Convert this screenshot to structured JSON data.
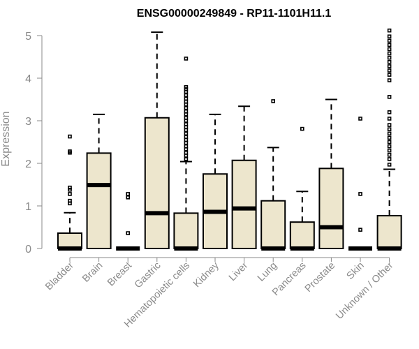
{
  "chart_data": {
    "type": "boxplot",
    "title": "ENSG00000249849 - RP11-1101H11.1",
    "ylabel": "Expression",
    "xlabel": "",
    "ylim": [
      0,
      5.2
    ],
    "yticks": [
      0,
      1,
      2,
      3,
      4,
      5
    ],
    "grid": false,
    "box_fill": "#ede6cd",
    "categories": [
      "Bladder",
      "Brain",
      "Breast",
      "Gastric",
      "Hematopoietic cells",
      "Kidney",
      "Liver",
      "Lung",
      "Pancreas",
      "Prostate",
      "Skin",
      "Unknown / Other"
    ],
    "boxes": [
      {
        "min": 0,
        "q1": 0,
        "median": 0,
        "q3": 0.36,
        "max": 0.84,
        "outliers": [
          1.06,
          1.12,
          1.28,
          1.38,
          1.43,
          2.25,
          2.28,
          2.63
        ]
      },
      {
        "min": 0,
        "q1": 0,
        "median": 1.49,
        "q3": 2.24,
        "max": 3.15,
        "outliers": []
      },
      {
        "min": 0,
        "q1": 0,
        "median": 0,
        "q3": 0,
        "max": 0,
        "outliers": [
          0.36,
          1.2,
          1.28
        ]
      },
      {
        "min": 0,
        "q1": 0,
        "median": 0.83,
        "q3": 3.07,
        "max": 5.08,
        "outliers": []
      },
      {
        "min": 0,
        "q1": 0,
        "median": 0,
        "q3": 0.83,
        "max": 2.04,
        "outliers": [
          2.1,
          2.18,
          2.25,
          2.33,
          2.4,
          2.48,
          2.55,
          2.62,
          2.7,
          2.78,
          2.85,
          2.92,
          3.0,
          3.07,
          3.15,
          3.22,
          3.3,
          3.38,
          3.45,
          3.52,
          3.6,
          3.68,
          3.74,
          3.79,
          4.46
        ]
      },
      {
        "min": 0,
        "q1": 0,
        "median": 0.86,
        "q3": 1.75,
        "max": 3.15,
        "outliers": []
      },
      {
        "min": 0,
        "q1": 0,
        "median": 0.94,
        "q3": 2.07,
        "max": 3.34,
        "outliers": []
      },
      {
        "min": 0,
        "q1": 0,
        "median": 0,
        "q3": 1.12,
        "max": 2.37,
        "outliers": [
          3.46
        ]
      },
      {
        "min": 0,
        "q1": 0,
        "median": 0,
        "q3": 0.62,
        "max": 1.34,
        "outliers": [
          2.81
        ]
      },
      {
        "min": 0,
        "q1": 0,
        "median": 0.5,
        "q3": 1.88,
        "max": 3.5,
        "outliers": []
      },
      {
        "min": 0,
        "q1": 0,
        "median": 0,
        "q3": 0,
        "max": 0,
        "outliers": [
          0.44,
          1.28,
          3.05
        ]
      },
      {
        "min": 0,
        "q1": 0,
        "median": 0,
        "q3": 0.77,
        "max": 1.86,
        "outliers": [
          1.97,
          2.1,
          2.2,
          2.3,
          2.4,
          2.5,
          2.6,
          2.7,
          2.8,
          2.9,
          3.05,
          3.2,
          3.56,
          3.95,
          4.08,
          4.18,
          4.28,
          4.38,
          4.48,
          4.58,
          4.68,
          4.78,
          4.88,
          4.98,
          5.12
        ]
      }
    ]
  }
}
